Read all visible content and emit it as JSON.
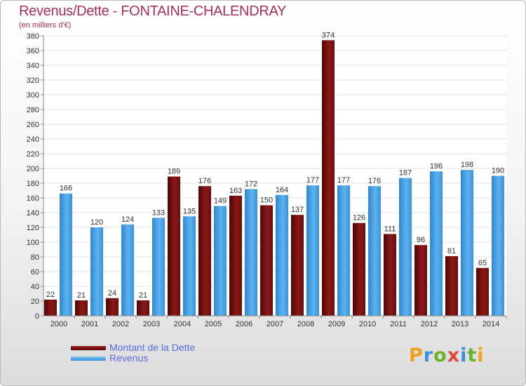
{
  "header": {
    "title": "Revenus/Dette - FONTAINE-CHALENDRAY",
    "subtitle": "(en milliers d'€)"
  },
  "legend": {
    "items": [
      {
        "label": "Montant de la Dette",
        "color": "#7a1010"
      },
      {
        "label": "Revenus",
        "color": "#4aa3e6"
      }
    ]
  },
  "logo": {
    "text": "Proxiti"
  },
  "chart_data": {
    "type": "bar",
    "title": "Revenus/Dette - FONTAINE-CHALENDRAY",
    "subtitle": "(en milliers d'€)",
    "xlabel": "",
    "ylabel": "",
    "ylim": [
      0,
      380
    ],
    "ytick_step": 20,
    "grid": true,
    "legend_position": "bottom-left",
    "categories": [
      "2000",
      "2001",
      "2002",
      "2003",
      "2004",
      "2005",
      "2006",
      "2007",
      "2008",
      "2009",
      "2010",
      "2011",
      "2012",
      "2013",
      "2014"
    ],
    "series": [
      {
        "name": "Montant de la Dette",
        "color": "#7a1010",
        "values": [
          22,
          21,
          24,
          21,
          189,
          176,
          163,
          150,
          137,
          374,
          126,
          111,
          96,
          81,
          65
        ]
      },
      {
        "name": "Revenus",
        "color": "#4aa3e6",
        "values": [
          166,
          120,
          124,
          133,
          135,
          149,
          172,
          164,
          177,
          177,
          176,
          187,
          196,
          198,
          190
        ]
      }
    ]
  }
}
